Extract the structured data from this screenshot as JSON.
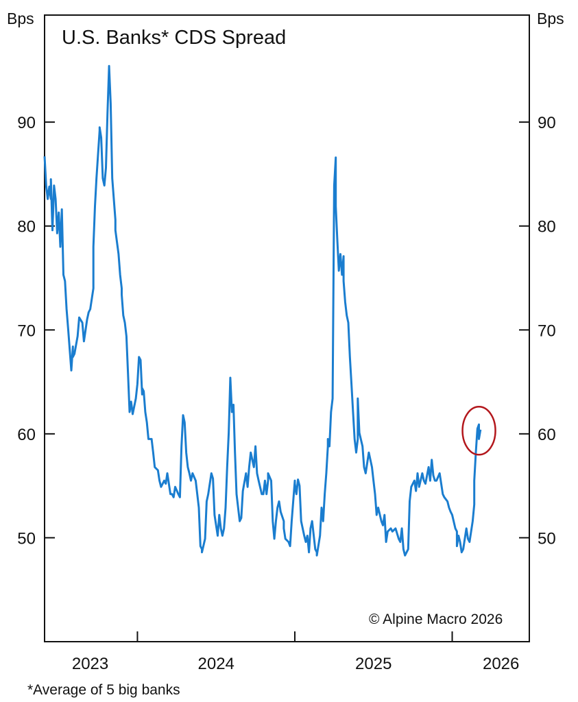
{
  "chart_data": {
    "type": "line",
    "title": "U.S. Banks* CDS Spread",
    "ylabel_left": "Bps",
    "ylabel_right": "Bps",
    "footnote": "*Average of 5 big banks",
    "copyright": "© Alpine Macro 2026",
    "xlim": [
      2023.41,
      2026.49
    ],
    "ylim": [
      40,
      100.3
    ],
    "yticks": [
      50,
      60,
      70,
      80,
      90
    ],
    "ytick_labels": [
      "50",
      "60",
      "70",
      "80",
      "90"
    ],
    "xticks": [
      2024,
      2025,
      2026
    ],
    "xtick_labels": [
      {
        "label": "2023",
        "center": 2023.7
      },
      {
        "label": "2024",
        "center": 2024.5
      },
      {
        "label": "2025",
        "center": 2025.5
      },
      {
        "label": "2026",
        "center": 2026.31
      }
    ],
    "grid": false,
    "line_color": "#1a7dcf",
    "highlight": {
      "shape": "ellipse",
      "x": 2026.17,
      "y": 60.3,
      "color": "#b3171c"
    },
    "series": [
      {
        "x": [
          2023.41,
          2023.42,
          2023.43,
          2023.44,
          2023.45,
          2023.45,
          2023.46,
          2023.47,
          2023.48,
          2023.49,
          2023.5,
          2023.51,
          2023.52,
          2023.53,
          2023.54,
          2023.55,
          2023.56,
          2023.57,
          2023.58,
          2023.59,
          2023.59,
          2023.6,
          2023.62,
          2023.63,
          2023.65,
          2023.66,
          2023.68,
          2023.69,
          2023.7,
          2023.72,
          2023.72,
          2023.73,
          2023.74,
          2023.76,
          2023.76,
          2023.77,
          2023.78,
          2023.79,
          2023.8,
          2023.81,
          2023.82,
          2023.83,
          2023.84,
          2023.86,
          2023.86,
          2023.88,
          2023.89,
          2023.9,
          2023.9,
          2023.91,
          2023.92,
          2023.93,
          2023.94,
          2023.95,
          2023.96,
          2023.97,
          2023.99,
          2024.0,
          2024.01,
          2024.02,
          2024.03,
          2024.03,
          2024.04,
          2024.05,
          2024.06,
          2024.07,
          2024.09,
          2024.1,
          2024.11,
          2024.13,
          2024.14,
          2024.15,
          2024.17,
          2024.18,
          2024.19,
          2024.21,
          2024.22,
          2024.23,
          2024.24,
          2024.26,
          2024.27,
          2024.28,
          2024.29,
          2024.3,
          2024.31,
          2024.32,
          2024.33,
          2024.34,
          2024.35,
          2024.37,
          2024.38,
          2024.39,
          2024.4,
          2024.41,
          2024.41,
          2024.43,
          2024.44,
          2024.45,
          2024.47,
          2024.48,
          2024.49,
          2024.51,
          2024.52,
          2024.53,
          2024.54,
          2024.55,
          2024.56,
          2024.57,
          2024.58,
          2024.59,
          2024.6,
          2024.61,
          2024.62,
          2024.63,
          2024.64,
          2024.65,
          2024.66,
          2024.67,
          2024.69,
          2024.7,
          2024.71,
          2024.72,
          2024.74,
          2024.75,
          2024.76,
          2024.77,
          2024.79,
          2024.8,
          2024.81,
          2024.82,
          2024.83,
          2024.83,
          2024.85,
          2024.86,
          2024.87,
          2024.88,
          2024.89,
          2024.9,
          2024.91,
          2024.93,
          2024.93,
          2024.94,
          2024.96,
          2024.97,
          2024.98,
          2025.0,
          2025.0,
          2025.01,
          2025.02,
          2025.03,
          2025.04,
          2025.06,
          2025.07,
          2025.08,
          2025.09,
          2025.1,
          2025.11,
          2025.13,
          2025.14,
          2025.14,
          2025.16,
          2025.17,
          2025.18,
          2025.19,
          2025.2,
          2025.21,
          2025.21,
          2025.22,
          2025.23,
          2025.24,
          2025.25,
          2025.26,
          2025.26,
          2025.27,
          2025.28,
          2025.29,
          2025.3,
          2025.31,
          2025.31,
          2025.32,
          2025.33,
          2025.34,
          2025.35,
          2025.36,
          2025.37,
          2025.38,
          2025.39,
          2025.4,
          2025.4,
          2025.41,
          2025.43,
          2025.44,
          2025.45,
          2025.47,
          2025.48,
          2025.49,
          2025.5,
          2025.51,
          2025.52,
          2025.53,
          2025.55,
          2025.56,
          2025.57,
          2025.58,
          2025.59,
          2025.61,
          2025.62,
          2025.64,
          2025.66,
          2025.67,
          2025.68,
          2025.69,
          2025.7,
          2025.72,
          2025.73,
          2025.74,
          2025.76,
          2025.77,
          2025.78,
          2025.79,
          2025.81,
          2025.82,
          2025.83,
          2025.85,
          2025.86,
          2025.87,
          2025.88,
          2025.89,
          2025.9,
          2025.92,
          2025.93,
          2025.94,
          2025.95,
          2025.97,
          2025.98,
          2025.99,
          2026.0,
          2026.02,
          2026.03,
          2026.03,
          2026.04,
          2026.05,
          2026.06,
          2026.07,
          2026.08,
          2026.09,
          2026.1,
          2026.11,
          2026.13,
          2026.14,
          2026.14,
          2026.15,
          2026.16,
          2026.17,
          2026.17,
          2026.18
        ],
        "y": [
          86.7,
          83.9,
          82.6,
          83.8,
          82.6,
          84.5,
          79.6,
          83.9,
          82.6,
          79.3,
          81.3,
          78.0,
          81.6,
          75.3,
          74.7,
          72.0,
          70.1,
          68.1,
          66.1,
          68.4,
          67.4,
          67.7,
          69.4,
          71.2,
          70.7,
          68.9,
          71.0,
          71.7,
          72.0,
          74.0,
          78.0,
          81.9,
          84.6,
          89.2,
          89.5,
          88.5,
          84.6,
          83.9,
          85.6,
          90.9,
          95.4,
          91.8,
          84.6,
          80.6,
          79.6,
          77.3,
          75.3,
          74.0,
          73.4,
          71.4,
          70.7,
          69.4,
          65.8,
          62.1,
          63.1,
          61.9,
          63.4,
          64.8,
          67.4,
          67.1,
          63.8,
          64.4,
          64.1,
          62.1,
          61.1,
          59.5,
          59.5,
          58.2,
          56.8,
          56.5,
          55.5,
          54.9,
          55.5,
          55.2,
          56.2,
          54.2,
          54.2,
          53.9,
          54.9,
          54.2,
          53.9,
          58.8,
          61.8,
          61.1,
          58.2,
          56.8,
          56.2,
          55.5,
          56.2,
          55.5,
          54.2,
          52.9,
          49.2,
          48.9,
          48.6,
          49.9,
          53.5,
          54.2,
          56.2,
          55.7,
          52.2,
          50.2,
          52.2,
          50.9,
          50.2,
          50.9,
          52.9,
          56.8,
          60.1,
          65.4,
          62.1,
          62.8,
          58.2,
          54.2,
          52.9,
          51.6,
          51.9,
          54.5,
          56.2,
          54.9,
          56.8,
          58.2,
          56.8,
          58.8,
          56.2,
          55.5,
          54.2,
          54.2,
          55.5,
          54.2,
          55.5,
          56.2,
          55.5,
          51.6,
          49.9,
          51.6,
          52.9,
          53.5,
          52.5,
          51.6,
          50.9,
          49.9,
          49.6,
          49.2,
          51.6,
          55.5,
          55.2,
          54.2,
          55.6,
          55.0,
          51.6,
          50.2,
          49.6,
          50.2,
          48.6,
          50.9,
          51.6,
          48.9,
          48.6,
          48.3,
          50.2,
          52.9,
          51.6,
          54.2,
          56.2,
          58.8,
          59.5,
          58.8,
          62.1,
          63.4,
          83.9,
          86.6,
          81.9,
          78.6,
          75.7,
          77.3,
          75.3,
          77.1,
          74.7,
          72.7,
          71.4,
          70.7,
          67.4,
          64.8,
          62.1,
          59.5,
          58.2,
          59.5,
          63.4,
          60.1,
          58.8,
          56.8,
          56.2,
          58.2,
          57.5,
          56.8,
          55.5,
          54.2,
          52.2,
          52.9,
          51.6,
          51.2,
          52.2,
          49.6,
          50.6,
          50.9,
          50.6,
          50.9,
          49.9,
          49.6,
          50.9,
          48.9,
          48.3,
          48.9,
          53.5,
          54.9,
          55.5,
          54.5,
          56.2,
          54.9,
          56.2,
          55.5,
          55.2,
          56.8,
          55.5,
          57.5,
          56.0,
          55.5,
          55.5,
          56.2,
          55.2,
          54.2,
          53.9,
          53.5,
          52.9,
          52.5,
          52.2,
          50.9,
          50.6,
          49.2,
          50.2,
          49.6,
          48.6,
          48.9,
          49.9,
          50.9,
          49.9,
          49.6,
          51.6,
          53.2,
          55.5,
          58.2,
          60.5,
          60.9,
          59.5,
          60.4
        ]
      }
    ]
  }
}
